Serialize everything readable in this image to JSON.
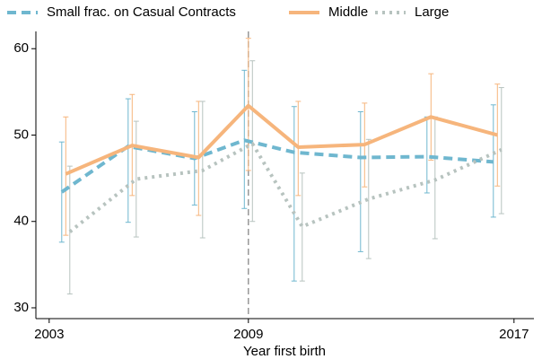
{
  "chart_data": {
    "type": "line",
    "x_label": "Year first birth",
    "xlim": [
      2002.6,
      2017.6
    ],
    "xticks": [
      2003,
      2009,
      2017
    ],
    "ylim": [
      28.75,
      62
    ],
    "yticks": [
      30,
      40,
      50,
      60
    ],
    "x": [
      2003.5,
      2005.5,
      2007.5,
      2009,
      2010.5,
      2012.5,
      2014.5,
      2016.5
    ],
    "vline": 2009,
    "legend": "top",
    "series": [
      {
        "name": "Small frac. on Casual Contracts",
        "color": "#6fb7cf",
        "dash": "dashed",
        "values": [
          43.4,
          48.7,
          47.3,
          49.4,
          48.0,
          47.4,
          47.5,
          46.9
        ],
        "upper": [
          49.2,
          54.2,
          52.7,
          57.5,
          53.3,
          52.7,
          52.1,
          53.5
        ],
        "lower": [
          37.6,
          39.9,
          41.9,
          41.5,
          33.1,
          36.5,
          43.3,
          40.5
        ]
      },
      {
        "name": "Middle",
        "color": "#f6b57c",
        "dash": "solid",
        "values": [
          45.5,
          48.8,
          47.4,
          53.4,
          48.6,
          48.9,
          52.1,
          50.0
        ],
        "upper": [
          52.1,
          54.7,
          53.9,
          61.2,
          53.9,
          53.7,
          57.1,
          55.9
        ],
        "lower": [
          38.4,
          43.0,
          40.7,
          45.9,
          43.0,
          44.0,
          47.1,
          44.1
        ]
      },
      {
        "name": "Large",
        "color": "#b7c3bf",
        "dash": "dotted",
        "values": [
          38.8,
          44.9,
          45.9,
          49.0,
          39.4,
          42.6,
          44.8,
          48.3
        ],
        "upper": [
          46.4,
          51.6,
          53.9,
          58.6,
          45.6,
          49.5,
          52.1,
          55.5
        ],
        "lower": [
          31.6,
          38.2,
          38.1,
          40.0,
          33.1,
          35.7,
          38.0,
          40.9
        ]
      }
    ]
  }
}
